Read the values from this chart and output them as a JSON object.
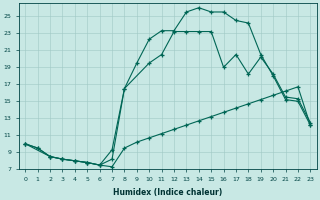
{
  "xlabel": "Humidex (Indice chaleur)",
  "bg_color": "#c8e8e4",
  "grid_color": "#a0c8c4",
  "line_color": "#006655",
  "xlim_min": -0.5,
  "xlim_max": 23.5,
  "ylim_min": 7.0,
  "ylim_max": 26.5,
  "xticks": [
    0,
    1,
    2,
    3,
    4,
    5,
    6,
    7,
    8,
    9,
    10,
    11,
    12,
    13,
    14,
    15,
    16,
    17,
    18,
    19,
    20,
    21,
    22,
    23
  ],
  "yticks": [
    9,
    11,
    13,
    15,
    17,
    19,
    21,
    23,
    25
  ],
  "ytick_labels": [
    "9",
    "11",
    "13",
    "15",
    "17",
    "19",
    "21",
    "23",
    "25"
  ],
  "extra_yticks": [
    7
  ],
  "curve1_x": [
    0,
    1,
    2,
    3,
    4,
    5,
    6,
    7,
    8,
    9,
    10,
    11,
    12,
    13,
    14,
    15,
    16,
    17,
    18,
    19,
    20,
    21,
    22,
    23
  ],
  "curve1_y": [
    10.0,
    9.5,
    8.5,
    8.2,
    8.0,
    7.8,
    7.5,
    7.3,
    9.5,
    10.2,
    10.7,
    11.2,
    11.7,
    12.2,
    12.7,
    13.2,
    13.7,
    14.2,
    14.7,
    15.2,
    15.7,
    16.2,
    16.7,
    12.2
  ],
  "curve2_x": [
    0,
    2,
    3,
    4,
    5,
    6,
    7,
    8,
    10,
    11,
    12,
    13,
    14,
    15,
    16,
    17,
    18,
    19,
    20,
    21,
    22,
    23
  ],
  "curve2_y": [
    10.0,
    8.5,
    8.2,
    8.0,
    7.8,
    7.5,
    9.3,
    16.5,
    19.5,
    20.5,
    23.2,
    23.2,
    23.2,
    23.2,
    19.0,
    20.5,
    18.2,
    20.2,
    18.2,
    15.5,
    15.3,
    12.5
  ],
  "curve3_x": [
    0,
    1,
    2,
    3,
    4,
    5,
    6,
    7,
    8,
    9,
    10,
    11,
    12,
    13,
    14,
    15,
    16,
    17,
    18,
    19,
    20,
    21,
    22,
    23
  ],
  "curve3_y": [
    10.0,
    9.5,
    8.5,
    8.2,
    8.0,
    7.8,
    7.5,
    8.2,
    16.5,
    19.5,
    22.3,
    23.3,
    23.3,
    25.5,
    26.0,
    25.5,
    25.5,
    24.5,
    24.2,
    20.5,
    18.0,
    15.2,
    15.0,
    12.2
  ]
}
